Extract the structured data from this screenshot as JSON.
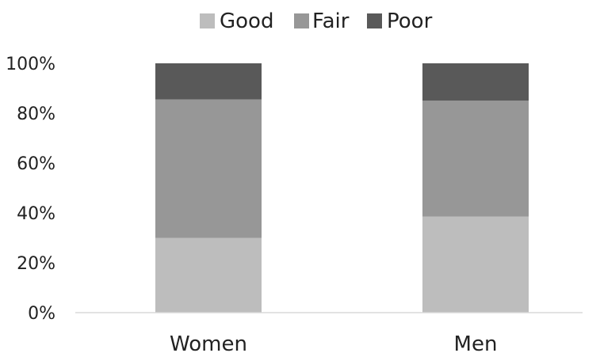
{
  "chart_data": {
    "type": "bar",
    "stacked": true,
    "categories": [
      "Women",
      "Men"
    ],
    "series": [
      {
        "name": "Good",
        "values": [
          30,
          38.5
        ],
        "color": "#bdbdbd"
      },
      {
        "name": "Fair",
        "values": [
          55.5,
          46.5
        ],
        "color": "#979797"
      },
      {
        "name": "Poor",
        "values": [
          14.5,
          15
        ],
        "color": "#595959"
      }
    ],
    "y_ticks": [
      "0%",
      "20%",
      "40%",
      "60%",
      "80%",
      "100%"
    ],
    "ylim": [
      0,
      100
    ],
    "grid": false,
    "legend_position": "top"
  }
}
